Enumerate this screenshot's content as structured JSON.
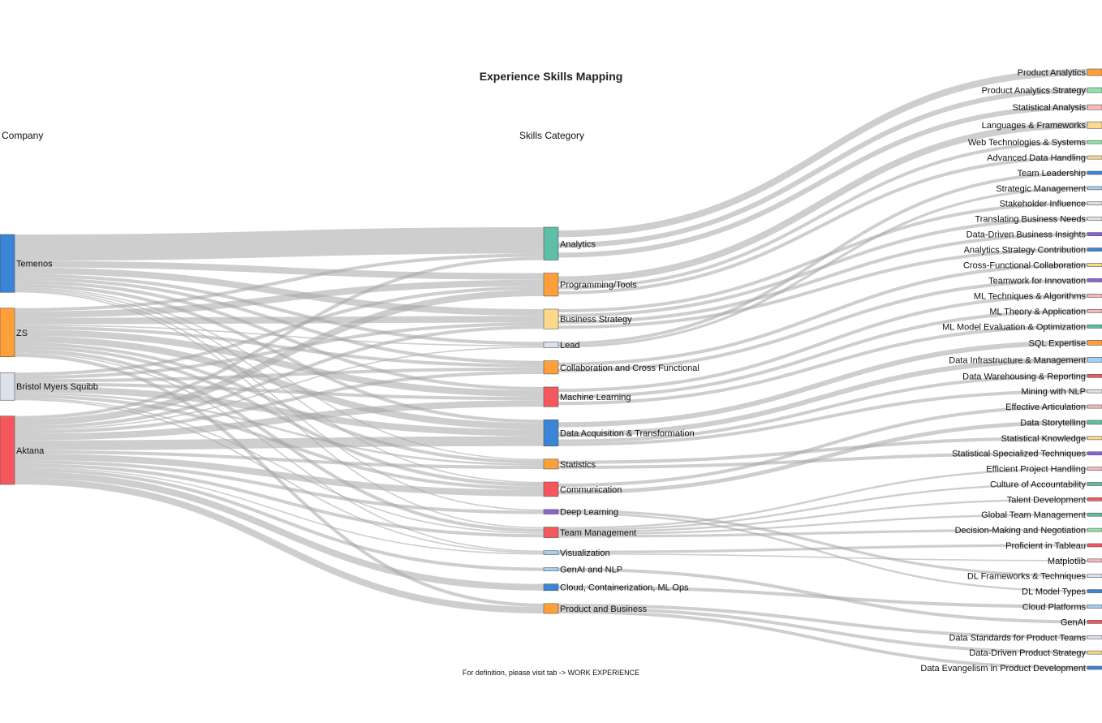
{
  "chart_data": {
    "type": "sankey",
    "title": "Experience Skills Mapping",
    "column_titles": [
      "Company",
      "Skills Category"
    ],
    "footnote": "For definition, please visit tab -> WORK EXPERIENCE",
    "colors": {
      "link": "#a6a6a6",
      "palette": {
        "blue": "#3a85d6",
        "orange": "#ff9f3a",
        "teal": "#5dbfa6",
        "yellow": "#fdd98a",
        "lightgray": "#dde2ea",
        "red": "#f5575c",
        "purple": "#8a63d2",
        "lightblue": "#a4cff4",
        "green": "#8fe3a6",
        "pink": "#f9b7b8"
      }
    },
    "columns": [
      [
        {
          "label": "Temenos",
          "color": "blue"
        },
        {
          "label": "ZS",
          "color": "orange"
        },
        {
          "label": "Bristol Myers Squibb",
          "color": "lightgray"
        },
        {
          "label": "Aktana",
          "color": "red"
        }
      ],
      [
        {
          "label": "Analytics",
          "color": "teal"
        },
        {
          "label": "Programming/Tools",
          "color": "orange"
        },
        {
          "label": "Business Strategy",
          "color": "yellow"
        },
        {
          "label": "Lead",
          "color": "lightgray"
        },
        {
          "label": "Collaboration and Cross Functional",
          "color": "orange"
        },
        {
          "label": "Machine Learning",
          "color": "red"
        },
        {
          "label": "Data Acquisition & Transformation",
          "color": "blue"
        },
        {
          "label": "Statistics",
          "color": "orange"
        },
        {
          "label": "Communication",
          "color": "red"
        },
        {
          "label": "Deep Learning",
          "color": "purple"
        },
        {
          "label": "Team Management",
          "color": "red"
        },
        {
          "label": "Visualization",
          "color": "lightblue"
        },
        {
          "label": "GenAI and NLP",
          "color": "lightblue"
        },
        {
          "label": "Cloud, Containerization, ML Ops",
          "color": "blue"
        },
        {
          "label": "Product and Business",
          "color": "orange"
        }
      ],
      [
        {
          "label": "Product Analytics",
          "color": "orange"
        },
        {
          "label": "Product Analytics Strategy",
          "color": "green"
        },
        {
          "label": "Statistical Analysis",
          "color": "pink"
        },
        {
          "label": "Languages & Frameworks",
          "color": "yellow"
        },
        {
          "label": "Web Technologies & Systems",
          "color": "green"
        },
        {
          "label": "Advanced Data Handling",
          "color": "yellow"
        },
        {
          "label": "Team Leadership",
          "color": "blue"
        },
        {
          "label": "Strategic Management",
          "color": "lightblue"
        },
        {
          "label": "Stakeholder Influence",
          "color": "lightgray"
        },
        {
          "label": "Translating Business Needs",
          "color": "lightgray"
        },
        {
          "label": "Data-Driven Business Insights",
          "color": "purple"
        },
        {
          "label": "Analytics Strategy Contribution",
          "color": "blue"
        },
        {
          "label": "Cross-Functional Collaboration",
          "color": "yellow"
        },
        {
          "label": "Teamwork for Innovation",
          "color": "purple"
        },
        {
          "label": "ML Techniques & Algorithms",
          "color": "pink"
        },
        {
          "label": "ML Theory & Application",
          "color": "pink"
        },
        {
          "label": "ML Model Evaluation & Optimization",
          "color": "teal"
        },
        {
          "label": "SQL Expertise",
          "color": "orange"
        },
        {
          "label": "Data Infrastructure & Management",
          "color": "lightblue"
        },
        {
          "label": "Data Warehousing & Reporting",
          "color": "red"
        },
        {
          "label": "Mining with NLP",
          "color": "lightgray"
        },
        {
          "label": "Effective Articulation",
          "color": "pink"
        },
        {
          "label": "Data Storytelling",
          "color": "teal"
        },
        {
          "label": "Statistical Knowledge",
          "color": "yellow"
        },
        {
          "label": "Statistical Specialized Techniques",
          "color": "purple"
        },
        {
          "label": "Efficient Project Handling",
          "color": "pink"
        },
        {
          "label": "Culture of Accountability",
          "color": "teal"
        },
        {
          "label": "Talent Development",
          "color": "red"
        },
        {
          "label": "Global Team Management",
          "color": "teal"
        },
        {
          "label": "Decision-Making and Negotiation",
          "color": "green"
        },
        {
          "label": "Proficient in Tableau",
          "color": "red"
        },
        {
          "label": "Matplotlib",
          "color": "pink"
        },
        {
          "label": "DL Frameworks & Techniques",
          "color": "lightgray"
        },
        {
          "label": "DL Model Types",
          "color": "blue"
        },
        {
          "label": "Cloud Platforms",
          "color": "lightblue"
        },
        {
          "label": "GenAI",
          "color": "red"
        },
        {
          "label": "Data Standards for Product Teams",
          "color": "lightgray"
        },
        {
          "label": "Data-Driven Product Strategy",
          "color": "yellow"
        },
        {
          "label": "Data Evangelism in Product Development",
          "color": "blue"
        }
      ]
    ],
    "links": [
      {
        "source": "Temenos",
        "target": "Analytics",
        "value": 4
      },
      {
        "source": "Temenos",
        "target": "Programming/Tools",
        "value": 1
      },
      {
        "source": "Temenos",
        "target": "Business Strategy",
        "value": 1
      },
      {
        "source": "Temenos",
        "target": "Lead",
        "value": 0.5
      },
      {
        "source": "Temenos",
        "target": "Collaboration and Cross Functional",
        "value": 0.5
      },
      {
        "source": "Temenos",
        "target": "Machine Learning",
        "value": 0.5
      },
      {
        "source": "Temenos",
        "target": "Data Acquisition & Transformation",
        "value": 0.5
      },
      {
        "source": "Temenos",
        "target": "Statistics",
        "value": 0.2
      },
      {
        "source": "Temenos",
        "target": "Communication",
        "value": 0.2
      },
      {
        "source": "Temenos",
        "target": "Deep Learning",
        "value": 0.2
      },
      {
        "source": "Temenos",
        "target": "Team Management",
        "value": 0.2
      },
      {
        "source": "ZS",
        "target": "Analytics",
        "value": 0.5
      },
      {
        "source": "ZS",
        "target": "Programming/Tools",
        "value": 1
      },
      {
        "source": "ZS",
        "target": "Business Strategy",
        "value": 1
      },
      {
        "source": "ZS",
        "target": "Lead",
        "value": 0.2
      },
      {
        "source": "ZS",
        "target": "Collaboration and Cross Functional",
        "value": 0.5
      },
      {
        "source": "ZS",
        "target": "Machine Learning",
        "value": 1
      },
      {
        "source": "ZS",
        "target": "Data Acquisition & Transformation",
        "value": 1
      },
      {
        "source": "ZS",
        "target": "Statistics",
        "value": 0.5
      },
      {
        "source": "ZS",
        "target": "Communication",
        "value": 0.5
      },
      {
        "source": "ZS",
        "target": "Team Management",
        "value": 0.5
      },
      {
        "source": "ZS",
        "target": "Visualization",
        "value": 0.2
      },
      {
        "source": "ZS",
        "target": "Product and Business",
        "value": 0.5
      },
      {
        "source": "Bristol Myers Squibb",
        "target": "Programming/Tools",
        "value": 0.5
      },
      {
        "source": "Bristol Myers Squibb",
        "target": "Business Strategy",
        "value": 0.5
      },
      {
        "source": "Bristol Myers Squibb",
        "target": "Collaboration and Cross Functional",
        "value": 0.5
      },
      {
        "source": "Bristol Myers Squibb",
        "target": "Machine Learning",
        "value": 0.5
      },
      {
        "source": "Bristol Myers Squibb",
        "target": "Data Acquisition & Transformation",
        "value": 1
      },
      {
        "source": "Bristol Myers Squibb",
        "target": "Statistics",
        "value": 0.3
      },
      {
        "source": "Bristol Myers Squibb",
        "target": "Communication",
        "value": 0.5
      },
      {
        "source": "Bristol Myers Squibb",
        "target": "Team Management",
        "value": 0.2
      },
      {
        "source": "Bristol Myers Squibb",
        "target": "Visualization",
        "value": 0.2
      },
      {
        "source": "Aktana",
        "target": "Analytics",
        "value": 0.5
      },
      {
        "source": "Aktana",
        "target": "Programming/Tools",
        "value": 1
      },
      {
        "source": "Aktana",
        "target": "Business Strategy",
        "value": 0.5
      },
      {
        "source": "Aktana",
        "target": "Lead",
        "value": 0.2
      },
      {
        "source": "Aktana",
        "target": "Collaboration and Cross Functional",
        "value": 0.5
      },
      {
        "source": "Aktana",
        "target": "Machine Learning",
        "value": 1
      },
      {
        "source": "Aktana",
        "target": "Data Acquisition & Transformation",
        "value": 1.5
      },
      {
        "source": "Aktana",
        "target": "Statistics",
        "value": 0.5
      },
      {
        "source": "Aktana",
        "target": "Communication",
        "value": 1
      },
      {
        "source": "Aktana",
        "target": "Deep Learning",
        "value": 0.5
      },
      {
        "source": "Aktana",
        "target": "Team Management",
        "value": 0.5
      },
      {
        "source": "Aktana",
        "target": "Visualization",
        "value": 0.2
      },
      {
        "source": "Aktana",
        "target": "GenAI and NLP",
        "value": 0.5
      },
      {
        "source": "Aktana",
        "target": "Cloud, Containerization, ML Ops",
        "value": 1
      },
      {
        "source": "Aktana",
        "target": "Product and Business",
        "value": 1
      },
      {
        "source": "Analytics",
        "target": "Product Analytics",
        "value": 2
      },
      {
        "source": "Analytics",
        "target": "Product Analytics Strategy",
        "value": 1.5
      },
      {
        "source": "Analytics",
        "target": "Statistical Analysis",
        "value": 1.5
      },
      {
        "source": "Programming/Tools",
        "target": "Languages & Frameworks",
        "value": 2
      },
      {
        "source": "Programming/Tools",
        "target": "Web Technologies & Systems",
        "value": 0.5
      },
      {
        "source": "Programming/Tools",
        "target": "Advanced Data Handling",
        "value": 1
      },
      {
        "source": "Lead",
        "target": "Team Leadership",
        "value": 0.5
      },
      {
        "source": "Lead",
        "target": "Strategic Management",
        "value": 0.4
      },
      {
        "source": "Business Strategy",
        "target": "Stakeholder Influence",
        "value": 0.5
      },
      {
        "source": "Business Strategy",
        "target": "Translating Business Needs",
        "value": 1
      },
      {
        "source": "Business Strategy",
        "target": "Data-Driven Business Insights",
        "value": 1
      },
      {
        "source": "Business Strategy",
        "target": "Analytics Strategy Contribution",
        "value": 0.5
      },
      {
        "source": "Collaboration and Cross Functional",
        "target": "Cross-Functional Collaboration",
        "value": 1
      },
      {
        "source": "Collaboration and Cross Functional",
        "target": "Teamwork for Innovation",
        "value": 1
      },
      {
        "source": "Machine Learning",
        "target": "ML Techniques & Algorithms",
        "value": 1
      },
      {
        "source": "Machine Learning",
        "target": "ML Theory & Application",
        "value": 1
      },
      {
        "source": "Machine Learning",
        "target": "ML Model Evaluation & Optimization",
        "value": 1
      },
      {
        "source": "Data Acquisition & Transformation",
        "target": "SQL Expertise",
        "value": 1.5
      },
      {
        "source": "Data Acquisition & Transformation",
        "target": "Data Infrastructure & Management",
        "value": 1.5
      },
      {
        "source": "Data Acquisition & Transformation",
        "target": "Data Warehousing & Reporting",
        "value": 0.5
      },
      {
        "source": "Data Acquisition & Transformation",
        "target": "Mining with NLP",
        "value": 0.5
      },
      {
        "source": "Communication",
        "target": "Effective Articulation",
        "value": 1
      },
      {
        "source": "Communication",
        "target": "Data Storytelling",
        "value": 1.2
      },
      {
        "source": "Statistics",
        "target": "Statistical Knowledge",
        "value": 1
      },
      {
        "source": "Statistics",
        "target": "Statistical Specialized Techniques",
        "value": 0.5
      },
      {
        "source": "Team Management",
        "target": "Efficient Project Handling",
        "value": 0.3
      },
      {
        "source": "Team Management",
        "target": "Culture of Accountability",
        "value": 0.3
      },
      {
        "source": "Team Management",
        "target": "Talent Development",
        "value": 0.3
      },
      {
        "source": "Team Management",
        "target": "Global Team Management",
        "value": 0.3
      },
      {
        "source": "Team Management",
        "target": "Decision-Making and Negotiation",
        "value": 0.4
      },
      {
        "source": "Visualization",
        "target": "Proficient in Tableau",
        "value": 0.4
      },
      {
        "source": "Visualization",
        "target": "Matplotlib",
        "value": 0.2
      },
      {
        "source": "Deep Learning",
        "target": "DL Frameworks & Techniques",
        "value": 0.4
      },
      {
        "source": "Deep Learning",
        "target": "DL Model Types",
        "value": 0.3
      },
      {
        "source": "Cloud, Containerization, ML Ops",
        "target": "Cloud Platforms",
        "value": 1
      },
      {
        "source": "GenAI and NLP",
        "target": "GenAI",
        "value": 0.5
      },
      {
        "source": "Product and Business",
        "target": "Data Standards for Product Teams",
        "value": 0.5
      },
      {
        "source": "Product and Business",
        "target": "Data-Driven Product Strategy",
        "value": 0.5
      },
      {
        "source": "Product and Business",
        "target": "Data Evangelism in Product Development",
        "value": 0.5
      }
    ]
  }
}
